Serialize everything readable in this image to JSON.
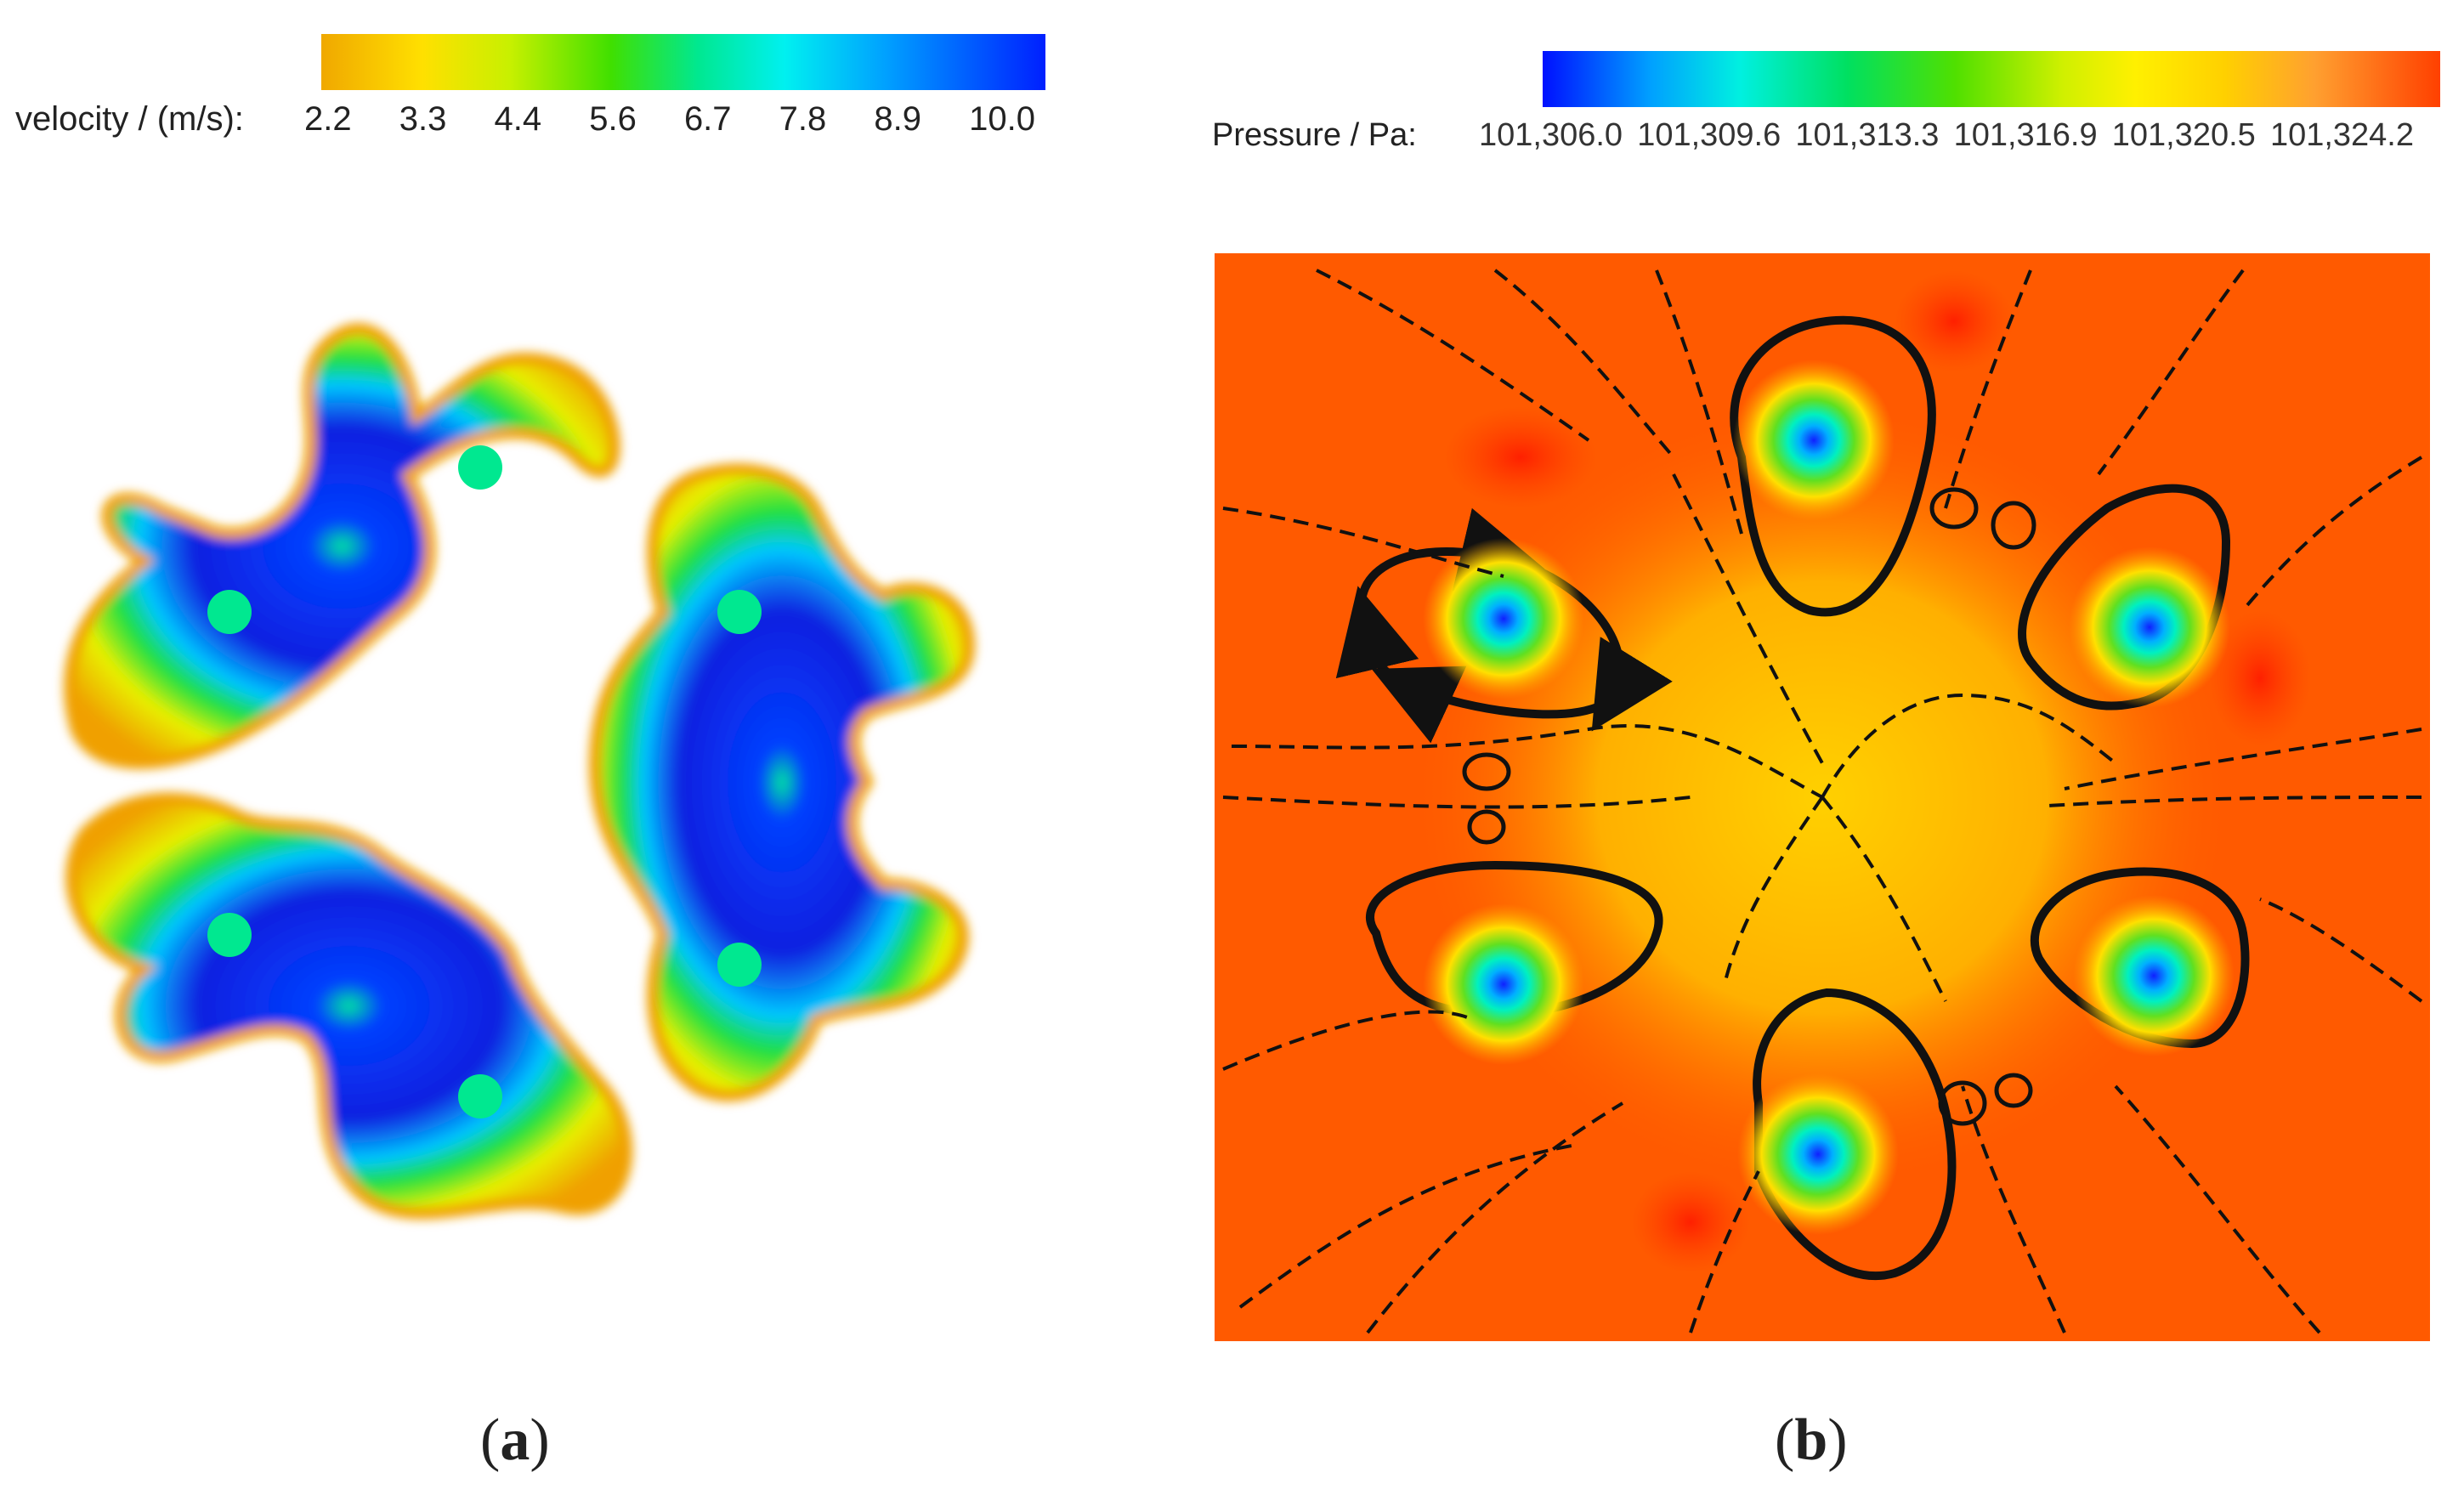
{
  "panel_a": {
    "colorbar": {
      "label": "velocity / (m/s):",
      "ticks": [
        "2.2",
        "3.3",
        "4.4",
        "5.6",
        "6.7",
        "7.8",
        "8.9",
        "10.0"
      ],
      "colors": [
        "#f0a800",
        "#ffe000",
        "#40e000",
        "#00f0f0",
        "#0020ff"
      ]
    },
    "caption_letter": "a"
  },
  "panel_b": {
    "colorbar": {
      "label": "Pressure / Pa:",
      "ticks": [
        "101,306.0",
        "101,309.6",
        "101,313.3",
        "101,316.9",
        "101,320.5",
        "101,324.2"
      ],
      "colors": [
        "#0010ff",
        "#00f0e0",
        "#50e000",
        "#fff000",
        "#ff4000"
      ]
    },
    "caption_letter": "b"
  }
}
